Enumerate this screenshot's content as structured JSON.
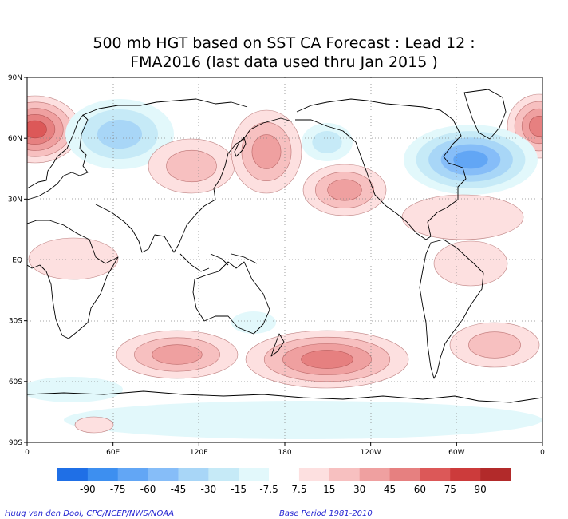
{
  "title_line1": "500 mb HGT based on SST CA Forecast : Lead 12 :",
  "title_line2": "FMA2016 (last data used thru Jan 2015 )",
  "lat_ticks": [
    "90N",
    "60N",
    "30N",
    "EQ",
    "30S",
    "60S",
    "90S"
  ],
  "lon_ticks": [
    "0",
    "60E",
    "120E",
    "180",
    "120W",
    "60W",
    "0"
  ],
  "colorbar": {
    "labels": [
      "-90",
      "-75",
      "-60",
      "-45",
      "-30",
      "-15",
      "-7.5",
      "7.5",
      "15",
      "30",
      "45",
      "60",
      "75",
      "90"
    ],
    "colors": [
      "#1f6fe6",
      "#3d8ff0",
      "#62a6f5",
      "#86bdf8",
      "#a8d6f7",
      "#c6eaf7",
      "#e2f8fb",
      "#ffffff",
      "#fde0e0",
      "#f7c0c0",
      "#efa0a0",
      "#e68080",
      "#dc5858",
      "#cc3b3b",
      "#b22a2a"
    ]
  },
  "footer_left": "Huug van den Dool, CPC/NCEP/NWS/NOAA",
  "footer_right": "Base Period 1981-2010"
}
